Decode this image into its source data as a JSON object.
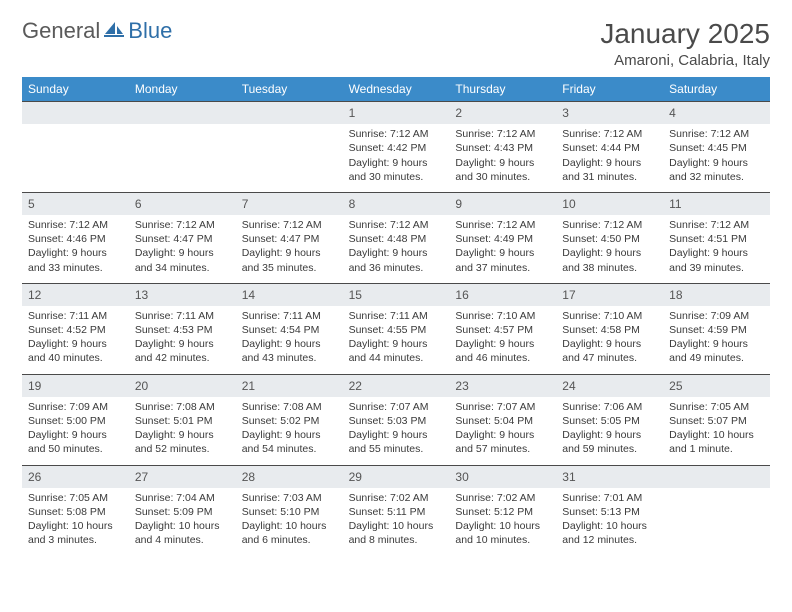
{
  "brand": {
    "part1": "General",
    "part2": "Blue"
  },
  "title": "January 2025",
  "location": "Amaroni, Calabria, Italy",
  "colors": {
    "header_bg": "#3b8bc9",
    "header_text": "#ffffff",
    "daynum_bg": "#e8ebee",
    "cell_border": "#4a4a4a",
    "text": "#3a3a3a",
    "brand_blue": "#2f6fa8"
  },
  "day_labels": [
    "Sunday",
    "Monday",
    "Tuesday",
    "Wednesday",
    "Thursday",
    "Friday",
    "Saturday"
  ],
  "weeks": [
    [
      {
        "n": "",
        "empty": true
      },
      {
        "n": "",
        "empty": true
      },
      {
        "n": "",
        "empty": true
      },
      {
        "n": "1",
        "sr": "7:12 AM",
        "ss": "4:42 PM",
        "dl": "9 hours and 30 minutes."
      },
      {
        "n": "2",
        "sr": "7:12 AM",
        "ss": "4:43 PM",
        "dl": "9 hours and 30 minutes."
      },
      {
        "n": "3",
        "sr": "7:12 AM",
        "ss": "4:44 PM",
        "dl": "9 hours and 31 minutes."
      },
      {
        "n": "4",
        "sr": "7:12 AM",
        "ss": "4:45 PM",
        "dl": "9 hours and 32 minutes."
      }
    ],
    [
      {
        "n": "5",
        "sr": "7:12 AM",
        "ss": "4:46 PM",
        "dl": "9 hours and 33 minutes."
      },
      {
        "n": "6",
        "sr": "7:12 AM",
        "ss": "4:47 PM",
        "dl": "9 hours and 34 minutes."
      },
      {
        "n": "7",
        "sr": "7:12 AM",
        "ss": "4:47 PM",
        "dl": "9 hours and 35 minutes."
      },
      {
        "n": "8",
        "sr": "7:12 AM",
        "ss": "4:48 PM",
        "dl": "9 hours and 36 minutes."
      },
      {
        "n": "9",
        "sr": "7:12 AM",
        "ss": "4:49 PM",
        "dl": "9 hours and 37 minutes."
      },
      {
        "n": "10",
        "sr": "7:12 AM",
        "ss": "4:50 PM",
        "dl": "9 hours and 38 minutes."
      },
      {
        "n": "11",
        "sr": "7:12 AM",
        "ss": "4:51 PM",
        "dl": "9 hours and 39 minutes."
      }
    ],
    [
      {
        "n": "12",
        "sr": "7:11 AM",
        "ss": "4:52 PM",
        "dl": "9 hours and 40 minutes."
      },
      {
        "n": "13",
        "sr": "7:11 AM",
        "ss": "4:53 PM",
        "dl": "9 hours and 42 minutes."
      },
      {
        "n": "14",
        "sr": "7:11 AM",
        "ss": "4:54 PM",
        "dl": "9 hours and 43 minutes."
      },
      {
        "n": "15",
        "sr": "7:11 AM",
        "ss": "4:55 PM",
        "dl": "9 hours and 44 minutes."
      },
      {
        "n": "16",
        "sr": "7:10 AM",
        "ss": "4:57 PM",
        "dl": "9 hours and 46 minutes."
      },
      {
        "n": "17",
        "sr": "7:10 AM",
        "ss": "4:58 PM",
        "dl": "9 hours and 47 minutes."
      },
      {
        "n": "18",
        "sr": "7:09 AM",
        "ss": "4:59 PM",
        "dl": "9 hours and 49 minutes."
      }
    ],
    [
      {
        "n": "19",
        "sr": "7:09 AM",
        "ss": "5:00 PM",
        "dl": "9 hours and 50 minutes."
      },
      {
        "n": "20",
        "sr": "7:08 AM",
        "ss": "5:01 PM",
        "dl": "9 hours and 52 minutes."
      },
      {
        "n": "21",
        "sr": "7:08 AM",
        "ss": "5:02 PM",
        "dl": "9 hours and 54 minutes."
      },
      {
        "n": "22",
        "sr": "7:07 AM",
        "ss": "5:03 PM",
        "dl": "9 hours and 55 minutes."
      },
      {
        "n": "23",
        "sr": "7:07 AM",
        "ss": "5:04 PM",
        "dl": "9 hours and 57 minutes."
      },
      {
        "n": "24",
        "sr": "7:06 AM",
        "ss": "5:05 PM",
        "dl": "9 hours and 59 minutes."
      },
      {
        "n": "25",
        "sr": "7:05 AM",
        "ss": "5:07 PM",
        "dl": "10 hours and 1 minute."
      }
    ],
    [
      {
        "n": "26",
        "sr": "7:05 AM",
        "ss": "5:08 PM",
        "dl": "10 hours and 3 minutes."
      },
      {
        "n": "27",
        "sr": "7:04 AM",
        "ss": "5:09 PM",
        "dl": "10 hours and 4 minutes."
      },
      {
        "n": "28",
        "sr": "7:03 AM",
        "ss": "5:10 PM",
        "dl": "10 hours and 6 minutes."
      },
      {
        "n": "29",
        "sr": "7:02 AM",
        "ss": "5:11 PM",
        "dl": "10 hours and 8 minutes."
      },
      {
        "n": "30",
        "sr": "7:02 AM",
        "ss": "5:12 PM",
        "dl": "10 hours and 10 minutes."
      },
      {
        "n": "31",
        "sr": "7:01 AM",
        "ss": "5:13 PM",
        "dl": "10 hours and 12 minutes."
      },
      {
        "n": "",
        "empty": true
      }
    ]
  ],
  "labels": {
    "sunrise": "Sunrise:",
    "sunset": "Sunset:",
    "daylight": "Daylight:"
  }
}
